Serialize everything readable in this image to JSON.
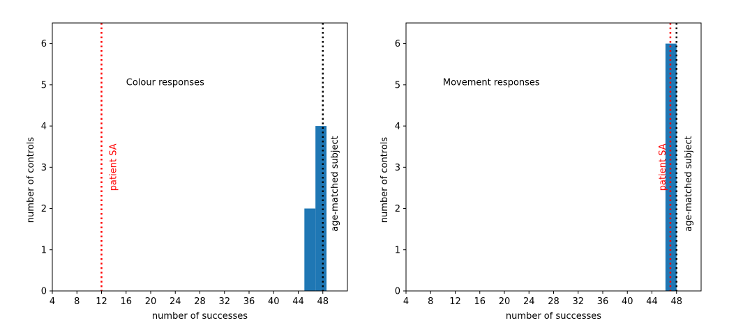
{
  "chart_data": [
    {
      "type": "bar",
      "annotation": "Colour responses",
      "xlabel": "number of successes",
      "ylabel": "number of controls",
      "xlim": [
        4,
        52
      ],
      "ylim": [
        0,
        6.5
      ],
      "xticks": [
        4,
        8,
        12,
        16,
        20,
        24,
        28,
        32,
        36,
        40,
        44,
        48
      ],
      "yticks": [
        0,
        1,
        2,
        3,
        4,
        5,
        6
      ],
      "bins": [
        {
          "x0": 45,
          "x1": 46.8,
          "value": 2
        },
        {
          "x0": 46.8,
          "x1": 48.6,
          "value": 4
        }
      ],
      "bar_color": "#1f77b4",
      "lines": [
        {
          "x": 12,
          "label": "patient SA",
          "color": "#ff0000",
          "label_side": "right"
        },
        {
          "x": 48,
          "label": "age-matched subject",
          "color": "#000000",
          "label_side": "right"
        }
      ]
    },
    {
      "type": "bar",
      "annotation": "Movement responses",
      "xlabel": "number of successes",
      "ylabel": "number of controls",
      "xlim": [
        4,
        52
      ],
      "ylim": [
        0,
        6.5
      ],
      "xticks": [
        4,
        8,
        12,
        16,
        20,
        24,
        28,
        32,
        36,
        40,
        44,
        48
      ],
      "yticks": [
        0,
        1,
        2,
        3,
        4,
        5,
        6
      ],
      "bins": [
        {
          "x0": 46.2,
          "x1": 48.0,
          "value": 6
        }
      ],
      "bar_color": "#1f77b4",
      "lines": [
        {
          "x": 47,
          "label": "patient SA",
          "color": "#ff0000",
          "label_side": "left"
        },
        {
          "x": 48,
          "label": "age-matched subject",
          "color": "#000000",
          "label_side": "right"
        }
      ]
    }
  ]
}
